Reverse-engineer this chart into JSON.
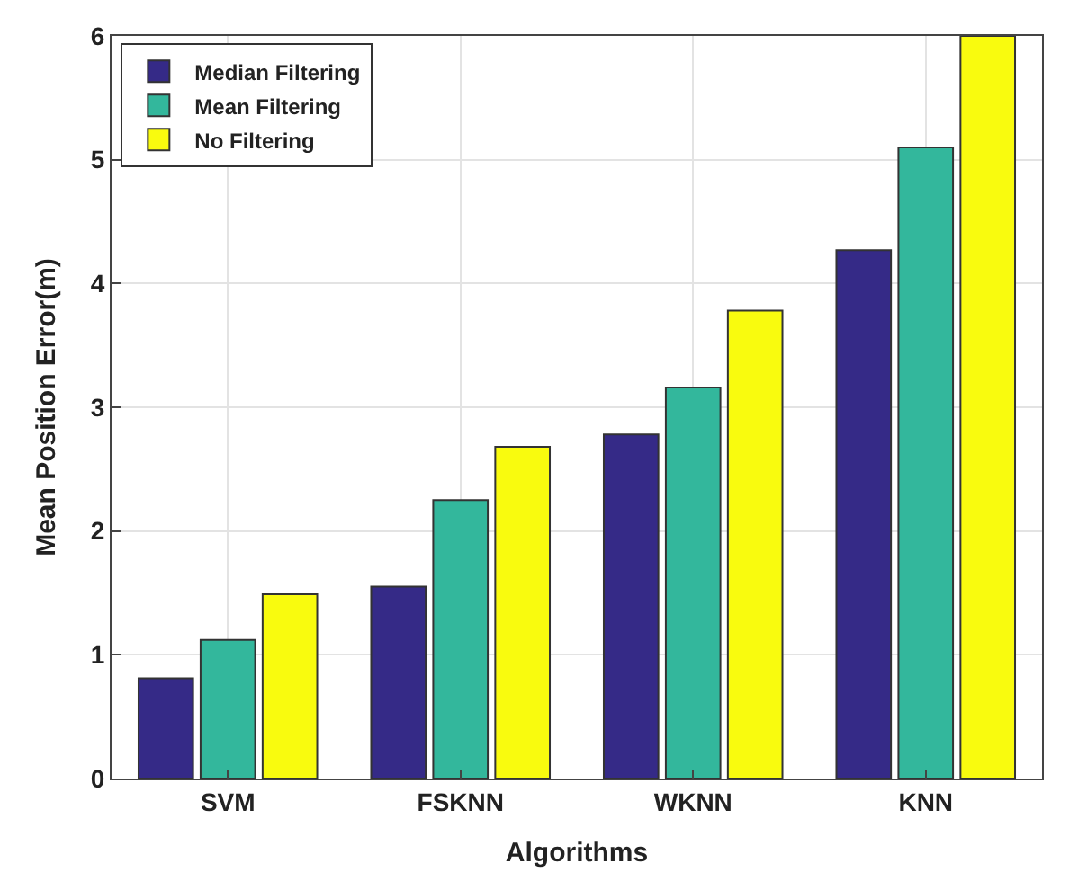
{
  "chart_data": {
    "type": "bar",
    "xlabel": "Algorithms",
    "ylabel": "Mean Position Error(m)",
    "categories": [
      "SVM",
      "FSKNN",
      "WKNN",
      "KNN"
    ],
    "series": [
      {
        "name": "Median Filtering",
        "color": "#352a87",
        "values": [
          0.81,
          1.55,
          2.78,
          4.27
        ]
      },
      {
        "name": "Mean Filtering",
        "color": "#33b79c",
        "values": [
          1.12,
          2.25,
          3.16,
          5.1
        ]
      },
      {
        "name": "No Filtering",
        "color": "#f9fb0e",
        "values": [
          1.49,
          2.68,
          3.78,
          6.0
        ]
      }
    ],
    "ylim": [
      0,
      6
    ],
    "yticks": [
      0,
      1,
      2,
      3,
      4,
      5,
      6
    ],
    "grid": true,
    "legend": "top left"
  }
}
